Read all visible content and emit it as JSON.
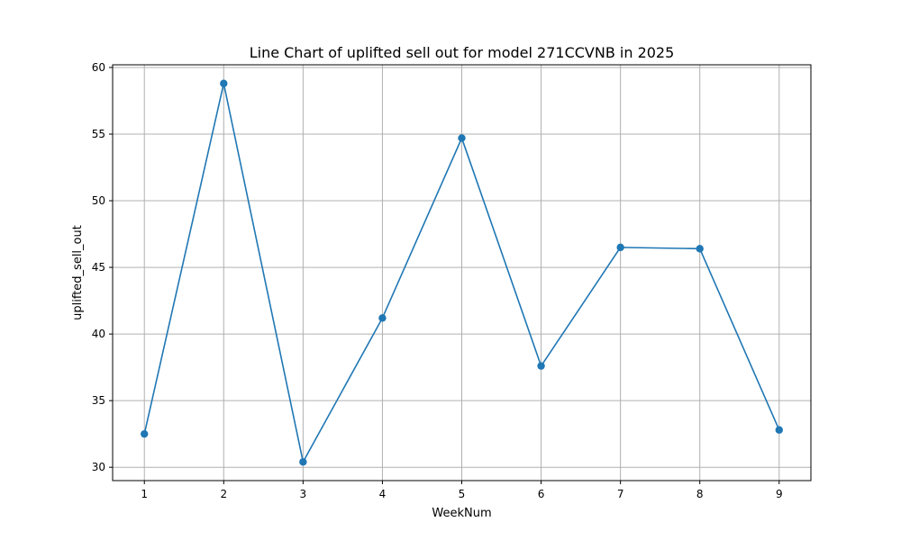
{
  "chart_data": {
    "type": "line",
    "title": "Line Chart of uplifted sell out for model 271CCVNB in 2025",
    "xlabel": "WeekNum",
    "ylabel": "uplifted_sell_out",
    "x": [
      1,
      2,
      3,
      4,
      5,
      6,
      7,
      8,
      9
    ],
    "series": [
      {
        "values": [
          32.5,
          58.8,
          30.4,
          41.2,
          54.7,
          37.6,
          46.5,
          46.4,
          32.8
        ],
        "color": "#1f77b4",
        "marker": "circle"
      }
    ],
    "xlim": [
      0.6,
      9.4
    ],
    "ylim": [
      29.0,
      60.2
    ],
    "xticks": [
      "1",
      "2",
      "3",
      "4",
      "5",
      "6",
      "7",
      "8",
      "9"
    ],
    "yticks": [
      "30",
      "35",
      "40",
      "45",
      "50",
      "55",
      "60"
    ],
    "grid": true,
    "legend": "none"
  }
}
